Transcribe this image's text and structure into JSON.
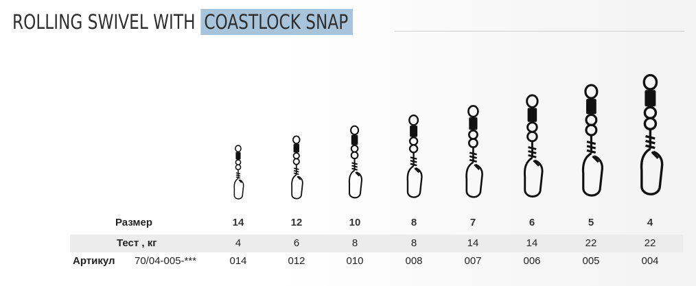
{
  "title": {
    "part1": "ROLLING SWIVEL WITH",
    "part2": "COASTLOCK SNAP"
  },
  "table": {
    "size_label": "Размер",
    "test_label": "Тест , кг",
    "article_label": "Артикул",
    "article_prefix": "70/04-005-***",
    "sizes": [
      "14",
      "12",
      "10",
      "8",
      "7",
      "6",
      "5",
      "4"
    ],
    "tests": [
      "4",
      "6",
      "8",
      "8",
      "14",
      "14",
      "22",
      "22"
    ],
    "articles": [
      "014",
      "012",
      "010",
      "008",
      "007",
      "006",
      "005",
      "004"
    ]
  },
  "colors": {
    "highlight": "#a7c4da",
    "row_shade": "#ececec",
    "ink": "#222222"
  }
}
